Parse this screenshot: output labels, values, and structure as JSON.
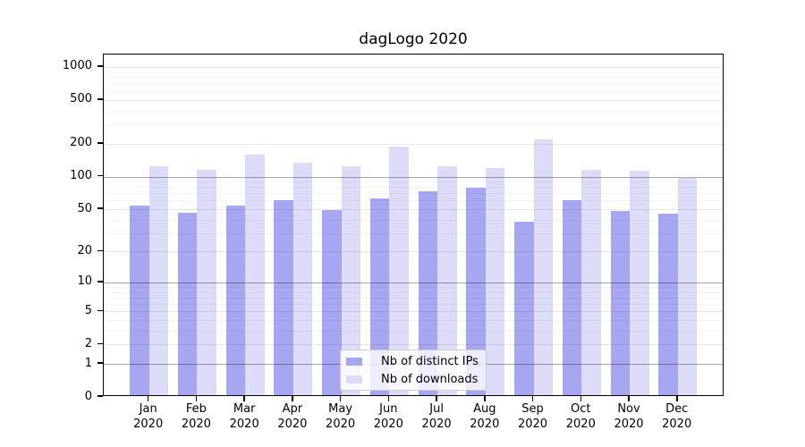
{
  "title": "dagLogo 2020",
  "legend": {
    "items": [
      {
        "label": "Nb of distinct IPs"
      },
      {
        "label": "Nb of downloads"
      }
    ]
  },
  "colors": {
    "distinct_ips": "#a6a6f2",
    "downloads": "#dcdcf9",
    "axis": "#000000",
    "background": "#ffffff"
  },
  "chart_data": {
    "type": "bar",
    "title": "dagLogo 2020",
    "categories": [
      "Jan 2020",
      "Feb 2020",
      "Mar 2020",
      "Apr 2020",
      "May 2020",
      "Jun 2020",
      "Jul 2020",
      "Aug 2020",
      "Sep 2020",
      "Oct 2020",
      "Nov 2020",
      "Dec 2020"
    ],
    "x_tick_lines": [
      [
        "Jan",
        "2020"
      ],
      [
        "Feb",
        "2020"
      ],
      [
        "Mar",
        "2020"
      ],
      [
        "Apr",
        "2020"
      ],
      [
        "May",
        "2020"
      ],
      [
        "Jun",
        "2020"
      ],
      [
        "Jul",
        "2020"
      ],
      [
        "Aug",
        "2020"
      ],
      [
        "Sep",
        "2020"
      ],
      [
        "Oct",
        "2020"
      ],
      [
        "Nov",
        "2020"
      ],
      [
        "Dec",
        "2020"
      ]
    ],
    "series": [
      {
        "name": "Nb of distinct IPs",
        "color": "#a6a6f2",
        "values": [
          52,
          45,
          52,
          58,
          47,
          61,
          71,
          76,
          37,
          58,
          46,
          44
        ]
      },
      {
        "name": "Nb of downloads",
        "color": "#dcdcf9",
        "values": [
          119,
          111,
          152,
          128,
          120,
          182,
          120,
          115,
          210,
          110,
          109,
          94
        ]
      }
    ],
    "yscale": "log10(1+v)",
    "yticks": [
      1000,
      500,
      200,
      100,
      50,
      20,
      10,
      5,
      2,
      1,
      0
    ],
    "ytick_major_lines": [
      100,
      10,
      1
    ],
    "minor_yticks": [
      3,
      4,
      6,
      7,
      8,
      9,
      30,
      40,
      60,
      70,
      80,
      90,
      300,
      400,
      600,
      700,
      800,
      900
    ],
    "ylim": [
      0,
      1300
    ],
    "grid": true,
    "legend_position": "lower center",
    "xlabel": "",
    "ylabel": ""
  }
}
